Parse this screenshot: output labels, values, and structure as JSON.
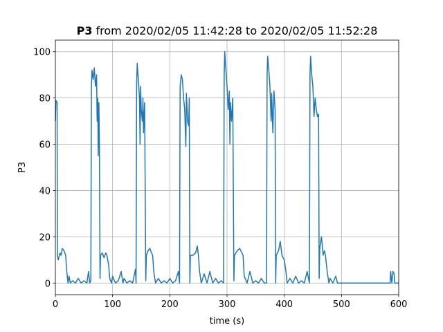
{
  "chart_data": {
    "type": "line",
    "title": [
      "P3",
      "from 2020/02/05 11:42:28 to 2020/02/05 11:52:28"
    ],
    "x_label": "time (s)",
    "y_label": "P3",
    "xlim": [
      0,
      600
    ],
    "ylim": [
      -5,
      105
    ],
    "xticks": [
      0,
      100,
      200,
      300,
      400,
      500,
      600
    ],
    "yticks": [
      0,
      20,
      40,
      60,
      80,
      100
    ],
    "grid": true,
    "series": [
      {
        "color": "#1f77b4",
        "x": [
          0,
          1,
          3,
          3.5,
          5,
          8,
          10,
          12,
          15,
          18,
          20,
          22,
          24,
          26,
          30,
          35,
          40,
          45,
          50,
          55,
          58,
          60,
          62,
          63,
          64,
          66,
          68,
          70,
          72,
          73,
          74,
          75,
          76,
          77,
          78,
          79,
          82,
          85,
          88,
          90,
          93,
          95,
          98,
          100,
          105,
          110,
          115,
          118,
          120,
          125,
          130,
          135,
          140,
          141,
          142,
          143,
          145,
          147,
          148,
          149,
          150,
          152,
          153,
          154,
          155,
          156,
          158,
          159,
          162,
          165,
          168,
          170,
          172,
          175,
          180,
          185,
          190,
          195,
          200,
          205,
          210,
          215,
          217,
          218,
          220,
          222,
          224,
          226,
          228,
          229,
          231,
          233,
          234,
          235,
          236,
          240,
          245,
          248,
          250,
          252,
          255,
          260,
          265,
          270,
          275,
          280,
          285,
          290,
          294,
          295,
          296,
          298,
          300,
          302,
          304,
          305,
          306,
          308,
          310,
          312,
          313,
          318,
          322,
          326,
          328,
          330,
          335,
          340,
          345,
          350,
          355,
          360,
          365,
          369,
          370,
          371,
          373,
          375,
          377,
          378,
          380,
          382,
          384,
          385,
          386,
          390,
          393,
          396,
          400,
          403,
          405,
          410,
          415,
          420,
          425,
          430,
          435,
          440,
          444,
          445,
          446,
          448,
          450,
          452,
          454,
          456,
          458,
          460,
          461,
          462,
          465,
          468,
          470,
          472,
          475,
          478,
          480,
          485,
          490,
          493,
          495,
          585,
          586,
          588,
          590,
          592,
          593,
          600
        ],
        "values": [
          70,
          79,
          78,
          12,
          10,
          13,
          12,
          15,
          14,
          12,
          5,
          0,
          3,
          0,
          1,
          0,
          2,
          0,
          1,
          0,
          5,
          0,
          1,
          85,
          92,
          88,
          93,
          85,
          90,
          70,
          80,
          55,
          78,
          60,
          2,
          12,
          13,
          11,
          13,
          12,
          8,
          2,
          0,
          3,
          0,
          1,
          5,
          0,
          2,
          0,
          1,
          0,
          6,
          0,
          85,
          95,
          88,
          80,
          60,
          85,
          75,
          70,
          80,
          65,
          72,
          78,
          1,
          12,
          14,
          15,
          13,
          12,
          5,
          0,
          2,
          0,
          1,
          0,
          2,
          0,
          1,
          5,
          0,
          85,
          90,
          88,
          80,
          75,
          59,
          82,
          70,
          68,
          80,
          0,
          12,
          12,
          13,
          16,
          12,
          5,
          0,
          4,
          0,
          5,
          0,
          2,
          0,
          1,
          0,
          90,
          100,
          92,
          85,
          75,
          83,
          60,
          78,
          70,
          80,
          1,
          12,
          14,
          15,
          13,
          12,
          3,
          0,
          5,
          0,
          1,
          0,
          2,
          0,
          0,
          90,
          98,
          92,
          85,
          70,
          82,
          65,
          83,
          75,
          0,
          12,
          14,
          18,
          12,
          10,
          5,
          0,
          2,
          0,
          3,
          0,
          1,
          0,
          5,
          0,
          90,
          98,
          90,
          85,
          72,
          80,
          75,
          72,
          73,
          2,
          15,
          20,
          12,
          14,
          12,
          5,
          0,
          2,
          0,
          3,
          0,
          0,
          0,
          5,
          0,
          5,
          4,
          0,
          0
        ]
      }
    ]
  }
}
